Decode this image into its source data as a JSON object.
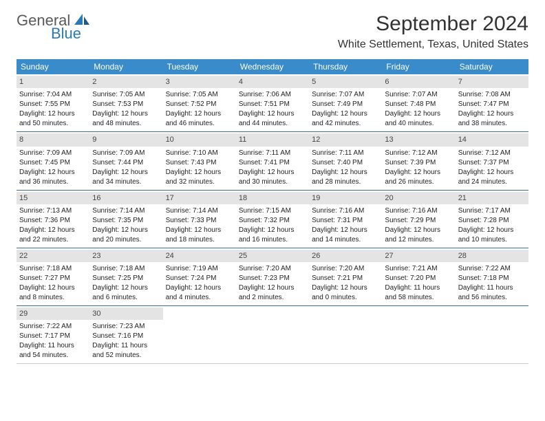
{
  "logo": {
    "top": "General",
    "bottom": "Blue",
    "accent_color": "#2a7ab8",
    "text_color": "#5a5a5a"
  },
  "title": "September 2024",
  "location": "White Settlement, Texas, United States",
  "header_bg": "#3a8bc9",
  "daynum_bg": "#e4e4e4",
  "rule_color": "#3a6a95",
  "weekdays": [
    "Sunday",
    "Monday",
    "Tuesday",
    "Wednesday",
    "Thursday",
    "Friday",
    "Saturday"
  ],
  "days": [
    {
      "n": "1",
      "sr": "Sunrise: 7:04 AM",
      "ss": "Sunset: 7:55 PM",
      "d1": "Daylight: 12 hours",
      "d2": "and 50 minutes."
    },
    {
      "n": "2",
      "sr": "Sunrise: 7:05 AM",
      "ss": "Sunset: 7:53 PM",
      "d1": "Daylight: 12 hours",
      "d2": "and 48 minutes."
    },
    {
      "n": "3",
      "sr": "Sunrise: 7:05 AM",
      "ss": "Sunset: 7:52 PM",
      "d1": "Daylight: 12 hours",
      "d2": "and 46 minutes."
    },
    {
      "n": "4",
      "sr": "Sunrise: 7:06 AM",
      "ss": "Sunset: 7:51 PM",
      "d1": "Daylight: 12 hours",
      "d2": "and 44 minutes."
    },
    {
      "n": "5",
      "sr": "Sunrise: 7:07 AM",
      "ss": "Sunset: 7:49 PM",
      "d1": "Daylight: 12 hours",
      "d2": "and 42 minutes."
    },
    {
      "n": "6",
      "sr": "Sunrise: 7:07 AM",
      "ss": "Sunset: 7:48 PM",
      "d1": "Daylight: 12 hours",
      "d2": "and 40 minutes."
    },
    {
      "n": "7",
      "sr": "Sunrise: 7:08 AM",
      "ss": "Sunset: 7:47 PM",
      "d1": "Daylight: 12 hours",
      "d2": "and 38 minutes."
    },
    {
      "n": "8",
      "sr": "Sunrise: 7:09 AM",
      "ss": "Sunset: 7:45 PM",
      "d1": "Daylight: 12 hours",
      "d2": "and 36 minutes."
    },
    {
      "n": "9",
      "sr": "Sunrise: 7:09 AM",
      "ss": "Sunset: 7:44 PM",
      "d1": "Daylight: 12 hours",
      "d2": "and 34 minutes."
    },
    {
      "n": "10",
      "sr": "Sunrise: 7:10 AM",
      "ss": "Sunset: 7:43 PM",
      "d1": "Daylight: 12 hours",
      "d2": "and 32 minutes."
    },
    {
      "n": "11",
      "sr": "Sunrise: 7:11 AM",
      "ss": "Sunset: 7:41 PM",
      "d1": "Daylight: 12 hours",
      "d2": "and 30 minutes."
    },
    {
      "n": "12",
      "sr": "Sunrise: 7:11 AM",
      "ss": "Sunset: 7:40 PM",
      "d1": "Daylight: 12 hours",
      "d2": "and 28 minutes."
    },
    {
      "n": "13",
      "sr": "Sunrise: 7:12 AM",
      "ss": "Sunset: 7:39 PM",
      "d1": "Daylight: 12 hours",
      "d2": "and 26 minutes."
    },
    {
      "n": "14",
      "sr": "Sunrise: 7:12 AM",
      "ss": "Sunset: 7:37 PM",
      "d1": "Daylight: 12 hours",
      "d2": "and 24 minutes."
    },
    {
      "n": "15",
      "sr": "Sunrise: 7:13 AM",
      "ss": "Sunset: 7:36 PM",
      "d1": "Daylight: 12 hours",
      "d2": "and 22 minutes."
    },
    {
      "n": "16",
      "sr": "Sunrise: 7:14 AM",
      "ss": "Sunset: 7:35 PM",
      "d1": "Daylight: 12 hours",
      "d2": "and 20 minutes."
    },
    {
      "n": "17",
      "sr": "Sunrise: 7:14 AM",
      "ss": "Sunset: 7:33 PM",
      "d1": "Daylight: 12 hours",
      "d2": "and 18 minutes."
    },
    {
      "n": "18",
      "sr": "Sunrise: 7:15 AM",
      "ss": "Sunset: 7:32 PM",
      "d1": "Daylight: 12 hours",
      "d2": "and 16 minutes."
    },
    {
      "n": "19",
      "sr": "Sunrise: 7:16 AM",
      "ss": "Sunset: 7:31 PM",
      "d1": "Daylight: 12 hours",
      "d2": "and 14 minutes."
    },
    {
      "n": "20",
      "sr": "Sunrise: 7:16 AM",
      "ss": "Sunset: 7:29 PM",
      "d1": "Daylight: 12 hours",
      "d2": "and 12 minutes."
    },
    {
      "n": "21",
      "sr": "Sunrise: 7:17 AM",
      "ss": "Sunset: 7:28 PM",
      "d1": "Daylight: 12 hours",
      "d2": "and 10 minutes."
    },
    {
      "n": "22",
      "sr": "Sunrise: 7:18 AM",
      "ss": "Sunset: 7:27 PM",
      "d1": "Daylight: 12 hours",
      "d2": "and 8 minutes."
    },
    {
      "n": "23",
      "sr": "Sunrise: 7:18 AM",
      "ss": "Sunset: 7:25 PM",
      "d1": "Daylight: 12 hours",
      "d2": "and 6 minutes."
    },
    {
      "n": "24",
      "sr": "Sunrise: 7:19 AM",
      "ss": "Sunset: 7:24 PM",
      "d1": "Daylight: 12 hours",
      "d2": "and 4 minutes."
    },
    {
      "n": "25",
      "sr": "Sunrise: 7:20 AM",
      "ss": "Sunset: 7:23 PM",
      "d1": "Daylight: 12 hours",
      "d2": "and 2 minutes."
    },
    {
      "n": "26",
      "sr": "Sunrise: 7:20 AM",
      "ss": "Sunset: 7:21 PM",
      "d1": "Daylight: 12 hours",
      "d2": "and 0 minutes."
    },
    {
      "n": "27",
      "sr": "Sunrise: 7:21 AM",
      "ss": "Sunset: 7:20 PM",
      "d1": "Daylight: 11 hours",
      "d2": "and 58 minutes."
    },
    {
      "n": "28",
      "sr": "Sunrise: 7:22 AM",
      "ss": "Sunset: 7:18 PM",
      "d1": "Daylight: 11 hours",
      "d2": "and 56 minutes."
    },
    {
      "n": "29",
      "sr": "Sunrise: 7:22 AM",
      "ss": "Sunset: 7:17 PM",
      "d1": "Daylight: 11 hours",
      "d2": "and 54 minutes."
    },
    {
      "n": "30",
      "sr": "Sunrise: 7:23 AM",
      "ss": "Sunset: 7:16 PM",
      "d1": "Daylight: 11 hours",
      "d2": "and 52 minutes."
    }
  ]
}
